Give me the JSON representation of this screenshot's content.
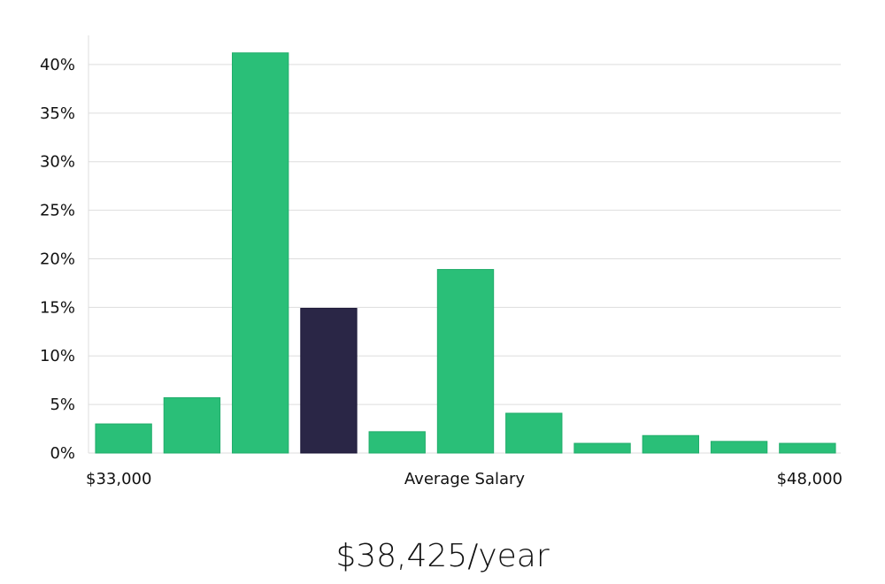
{
  "chart_data": {
    "type": "bar",
    "y_ticks": [
      "0%",
      "5%",
      "10%",
      "15%",
      "20%",
      "25%",
      "30%",
      "35%",
      "40%"
    ],
    "ylim": [
      0,
      43
    ],
    "values": [
      3.0,
      5.7,
      41.2,
      14.9,
      2.2,
      18.9,
      4.1,
      1.0,
      1.8,
      1.2,
      1.0
    ],
    "highlight_index": 3,
    "colors": {
      "bar": "#2abf78",
      "highlight": "#2a2646",
      "grid": "#dddddd",
      "axis": "#dddddd"
    },
    "x_min_label": "$33,000",
    "x_center_label": "Average Salary",
    "x_max_label": "$48,000",
    "grid": true
  },
  "salary_text": "$38,425/year"
}
